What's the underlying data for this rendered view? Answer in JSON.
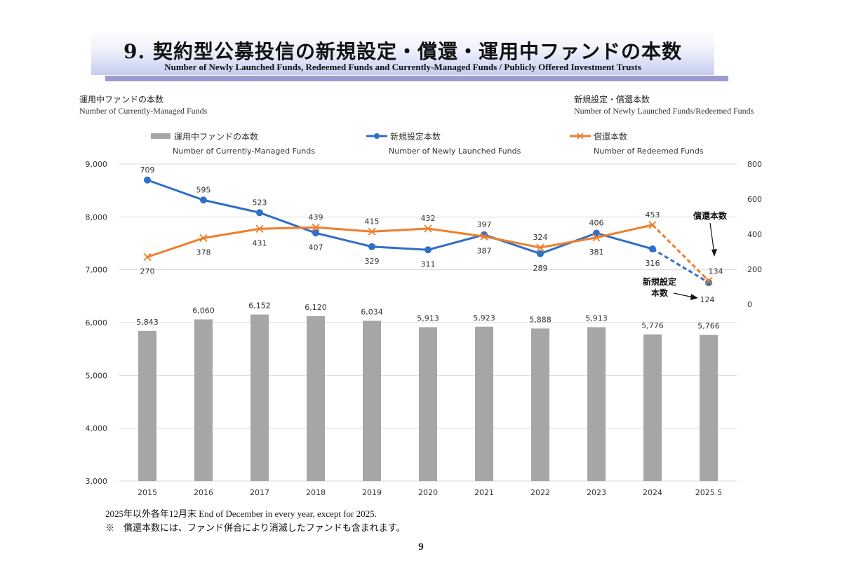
{
  "header": {
    "title_ja": "9. 契約型公募投信の新規設定・償還・運用中ファンドの本数",
    "title_en": "Number of Newly Launched Funds, Redeemed Funds and Currently-Managed Funds / Publicly Offered Investment Trusts"
  },
  "left_axis_caption": {
    "ja": "運用中ファンドの本数",
    "en": "Number of Currently-Managed Funds"
  },
  "right_axis_caption": {
    "ja": "新規設定・償還本数",
    "en": "Number of Newly Launched Funds/Redeemed Funds"
  },
  "legend": {
    "bars": {
      "ja": "運用中ファンドの本数",
      "en": "Number of Currently-Managed Funds"
    },
    "launched": {
      "ja": "新規設定本数",
      "en": "Number of Newly Launched Funds"
    },
    "redeemed": {
      "ja": "償還本数",
      "en": "Number of Redeemed Funds"
    }
  },
  "annotations": {
    "redeemed_ja": "償還本数",
    "launched_ja_line1": "新規設定",
    "launched_ja_line2": "本数"
  },
  "colors": {
    "bar": "#a6a6a6",
    "launched": "#2f6fc6",
    "redeemed": "#f07d2c",
    "grid": "#d9d9d9"
  },
  "chart_data": {
    "type": "bar+line",
    "categories": [
      "2015",
      "2016",
      "2017",
      "2018",
      "2019",
      "2020",
      "2021",
      "2022",
      "2023",
      "2024",
      "2025.5"
    ],
    "left_axis": {
      "ylim": [
        3000,
        9000
      ],
      "ticks": [
        "3,000",
        "4,000",
        "5,000",
        "6,000",
        "7,000",
        "8,000",
        "9,000"
      ]
    },
    "right_axis": {
      "ylim": [
        0,
        800
      ],
      "ticks": [
        "0",
        "200",
        "400",
        "600",
        "800"
      ],
      "visible_range": [
        0,
        800
      ]
    },
    "series": [
      {
        "name": "運用中ファンドの本数",
        "type": "bar",
        "axis": "left",
        "values": [
          5843,
          6060,
          6152,
          6120,
          6034,
          5913,
          5923,
          5888,
          5913,
          5776,
          5766
        ],
        "labels": [
          "5,843",
          "6,060",
          "6,152",
          "6,120",
          "6,034",
          "5,913",
          "5,923",
          "5,888",
          "5,913",
          "5,776",
          "5,766"
        ]
      },
      {
        "name": "新規設定本数",
        "type": "line",
        "axis": "right",
        "marker": "circle",
        "values": [
          709,
          595,
          523,
          407,
          329,
          311,
          397,
          289,
          406,
          316,
          124
        ],
        "last_segment_dashed": true
      },
      {
        "name": "償還本数",
        "type": "line",
        "axis": "right",
        "marker": "x",
        "values": [
          270,
          378,
          431,
          439,
          415,
          432,
          387,
          324,
          381,
          453,
          134
        ],
        "last_segment_dashed": true
      }
    ]
  },
  "footnotes": {
    "line1": "2025年以外各年12月末 End of December in every year, except for 2025.",
    "line2": "※　償還本数には、ファンド併合により消滅したファンドも含まれます。"
  },
  "page_number": "9"
}
